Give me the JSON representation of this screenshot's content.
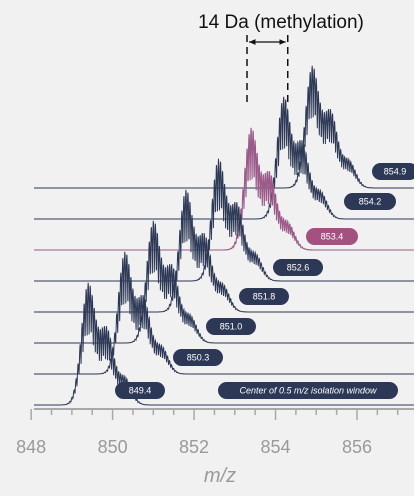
{
  "chart_data": {
    "type": "line",
    "annotation": "14 Da (methylation)",
    "xlabel": "m/z",
    "xlim": [
      847.8,
      857.4
    ],
    "x_ticks": [
      848,
      850,
      852,
      854,
      856
    ],
    "x_tick_labels": [
      "848",
      "850",
      "852",
      "854",
      "856"
    ],
    "isolation_note": "Center of 0.5 m/z isolation window",
    "series": [
      {
        "label": "849.4",
        "center": 849.4,
        "highlight": false
      },
      {
        "label": "850.3",
        "center": 850.3,
        "highlight": false
      },
      {
        "label": "851.0",
        "center": 851.0,
        "highlight": false
      },
      {
        "label": "851.8",
        "center": 851.8,
        "highlight": false
      },
      {
        "label": "852.6",
        "center": 852.6,
        "highlight": false
      },
      {
        "label": "853.4",
        "center": 853.4,
        "highlight": true
      },
      {
        "label": "854.2",
        "center": 854.2,
        "highlight": false
      },
      {
        "label": "854.9",
        "center": 854.9,
        "highlight": false
      }
    ],
    "colors": {
      "trace": "#2c3855",
      "highlight": "#9b5a8a",
      "axis": "#a8a8a8",
      "pill": "#2c3855",
      "highlight_pill": "#a3527f"
    }
  }
}
